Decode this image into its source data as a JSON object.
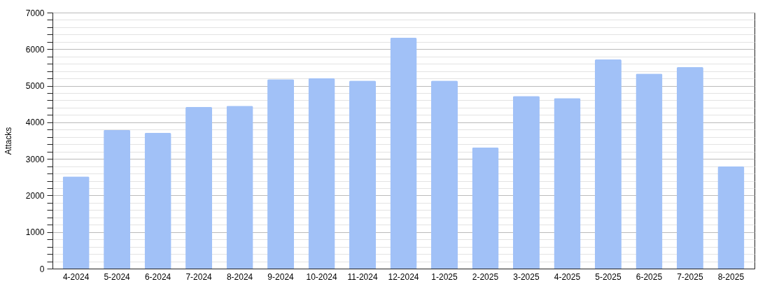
{
  "chart_data": {
    "type": "bar",
    "ylabel": "Attacks",
    "categories": [
      "4-2024",
      "5-2024",
      "6-2024",
      "7-2024",
      "8-2024",
      "9-2024",
      "10-2024",
      "11-2024",
      "12-2024",
      "1-2025",
      "2-2025",
      "3-2025",
      "4-2025",
      "5-2025",
      "6-2025",
      "7-2025",
      "8-2025"
    ],
    "values": [
      2520,
      3790,
      3710,
      4420,
      4450,
      5180,
      5200,
      5140,
      6310,
      5140,
      3310,
      4720,
      4660,
      5720,
      5330,
      5510,
      2790
    ],
    "color": "#a1c1f7",
    "ylim": [
      0,
      7000
    ],
    "yticks": [
      0,
      {
        "value": 200,
        "label": null
      },
      {
        "value": 400,
        "label": null
      },
      {
        "value": 600,
        "label": null
      },
      {
        "value": 800,
        "label": null
      },
      1000,
      {
        "value": 1200,
        "label": null
      },
      {
        "value": 1400,
        "label": null
      },
      {
        "value": 1600,
        "label": null
      },
      {
        "value": 1800,
        "label": null
      },
      2000,
      {
        "value": 2200,
        "label": null
      },
      {
        "value": 2400,
        "label": null
      },
      {
        "value": 2600,
        "label": null
      },
      {
        "value": 2800,
        "label": null
      },
      3000,
      {
        "value": 3200,
        "label": null
      },
      {
        "value": 3400,
        "label": null
      },
      {
        "value": 3600,
        "label": null
      },
      {
        "value": 3800,
        "label": null
      },
      4000,
      {
        "value": 4200,
        "label": null
      },
      {
        "value": 4400,
        "label": null
      },
      {
        "value": 4600,
        "label": null
      },
      {
        "value": 4800,
        "label": null
      },
      5000,
      {
        "value": 5200,
        "label": null
      },
      {
        "value": 5400,
        "label": null
      },
      {
        "value": 5600,
        "label": null
      },
      {
        "value": 5800,
        "label": null
      },
      6000,
      {
        "value": 6200,
        "label": null
      },
      {
        "value": 6400,
        "label": null
      },
      {
        "value": 6600,
        "label": null
      },
      {
        "value": 6800,
        "label": null
      },
      7000
    ],
    "grid": "y"
  }
}
